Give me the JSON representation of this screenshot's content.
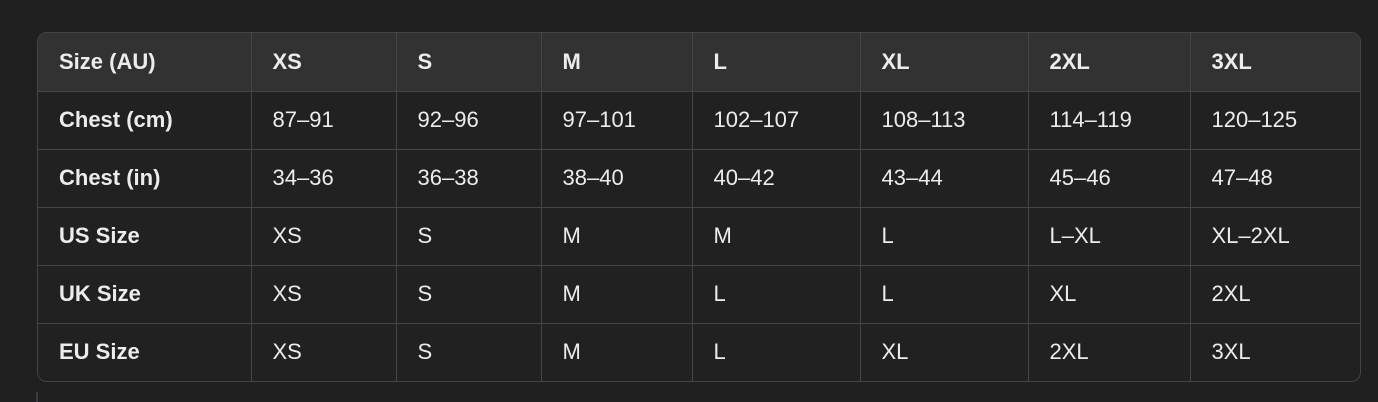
{
  "table": {
    "headers": [
      "Size (AU)",
      "XS",
      "S",
      "M",
      "L",
      "XL",
      "2XL",
      "3XL"
    ],
    "rows": [
      [
        "Chest (cm)",
        "87–91",
        "92–96",
        "97–101",
        "102–107",
        "108–113",
        "114–119",
        "120–125"
      ],
      [
        "Chest (in)",
        "34–36",
        "36–38",
        "38–40",
        "40–42",
        "43–44",
        "45–46",
        "47–48"
      ],
      [
        "US Size",
        "XS",
        "S",
        "M",
        "M",
        "L",
        "L–XL",
        "XL–2XL"
      ],
      [
        "UK Size",
        "XS",
        "S",
        "M",
        "L",
        "L",
        "XL",
        "2XL"
      ],
      [
        "EU Size",
        "XS",
        "S",
        "M",
        "L",
        "XL",
        "2XL",
        "3XL"
      ]
    ]
  },
  "colors": {
    "background": "#202020",
    "header_bg": "#323232",
    "cell_bg": "#212121",
    "border": "#454545",
    "text": "#ececec"
  }
}
